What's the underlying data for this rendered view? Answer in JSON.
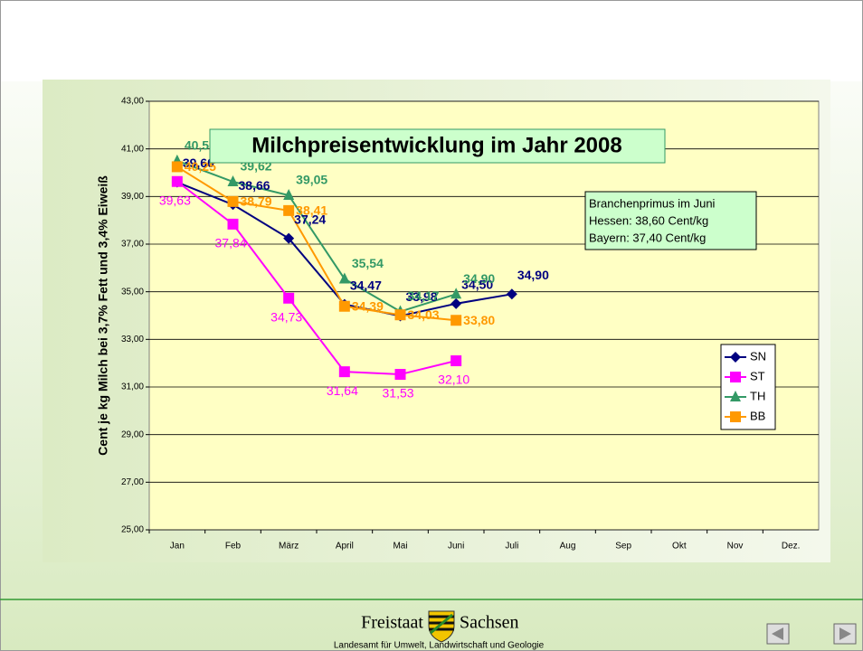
{
  "chart_data": {
    "type": "line",
    "title": "Milchpreisentwicklung im Jahr 2008",
    "ylabel": "Cent je kg Milch bei 3,7% Fett und 3,4% Eiweiß",
    "annotation": [
      "Branchenprimus im Juni",
      "Hessen: 38,60 Cent/kg",
      "Bayern: 37,40 Cent/kg"
    ],
    "categories": [
      "Jan",
      "Feb",
      "März",
      "April",
      "Mai",
      "Juni",
      "Juli",
      "Aug",
      "Sep",
      "Okt",
      "Nov",
      "Dez."
    ],
    "ylim": [
      25,
      43
    ],
    "yticks": [
      {
        "value": 25,
        "label": "25,00"
      },
      {
        "value": 27,
        "label": "27,00"
      },
      {
        "value": 29,
        "label": "29,00"
      },
      {
        "value": 31,
        "label": "31,00"
      },
      {
        "value": 33,
        "label": "33,00"
      },
      {
        "value": 35,
        "label": "35,00"
      },
      {
        "value": 37,
        "label": "37,00"
      },
      {
        "value": 39,
        "label": "39,00"
      },
      {
        "value": 41,
        "label": "41,00"
      },
      {
        "value": 43,
        "label": "43,00"
      }
    ],
    "grid": true,
    "legend": "right",
    "series": [
      {
        "name": "SN",
        "color": "#000080",
        "marker": "diamond",
        "values": [
          39.6,
          38.66,
          37.24,
          34.47,
          33.98,
          34.5,
          34.9,
          null,
          null,
          null,
          null,
          null
        ],
        "value_labels": [
          "39,60",
          "38,66",
          "37,24",
          "34,47",
          "33,98",
          "34,50",
          "34,90",
          null,
          null,
          null,
          null,
          null
        ]
      },
      {
        "name": "ST",
        "color": "#ff00ff",
        "marker": "square",
        "values": [
          39.63,
          37.84,
          34.73,
          31.64,
          31.53,
          32.1,
          null,
          null,
          null,
          null,
          null,
          null
        ],
        "value_labels": [
          "39,63",
          "37,84",
          "34,73",
          "31,64",
          "31,53",
          "32,10",
          null,
          null,
          null,
          null,
          null,
          null
        ]
      },
      {
        "name": "TH",
        "color": "#339966",
        "marker": "triangle",
        "values": [
          40.5,
          39.62,
          39.05,
          35.54,
          34.17,
          34.9,
          null,
          null,
          null,
          null,
          null,
          null
        ],
        "value_labels": [
          "40,50",
          "39,62",
          "39,05",
          "35,54",
          "34,17",
          "34,90",
          null,
          null,
          null,
          null,
          null,
          null
        ]
      },
      {
        "name": "BB",
        "color": "#ff9900",
        "marker": "square",
        "values": [
          40.25,
          38.79,
          38.41,
          34.39,
          34.03,
          33.8,
          null,
          null,
          null,
          null,
          null,
          null
        ],
        "value_labels": [
          "40,25",
          "38,79",
          "38,41",
          "34,39",
          "34,03",
          "33,80",
          null,
          null,
          null,
          null,
          null,
          null
        ]
      }
    ],
    "footer": {
      "left": "Freistaat",
      "right": "Sachsen",
      "sub": "Landesamt für Umwelt, Landwirtschaft und Geologie"
    }
  }
}
